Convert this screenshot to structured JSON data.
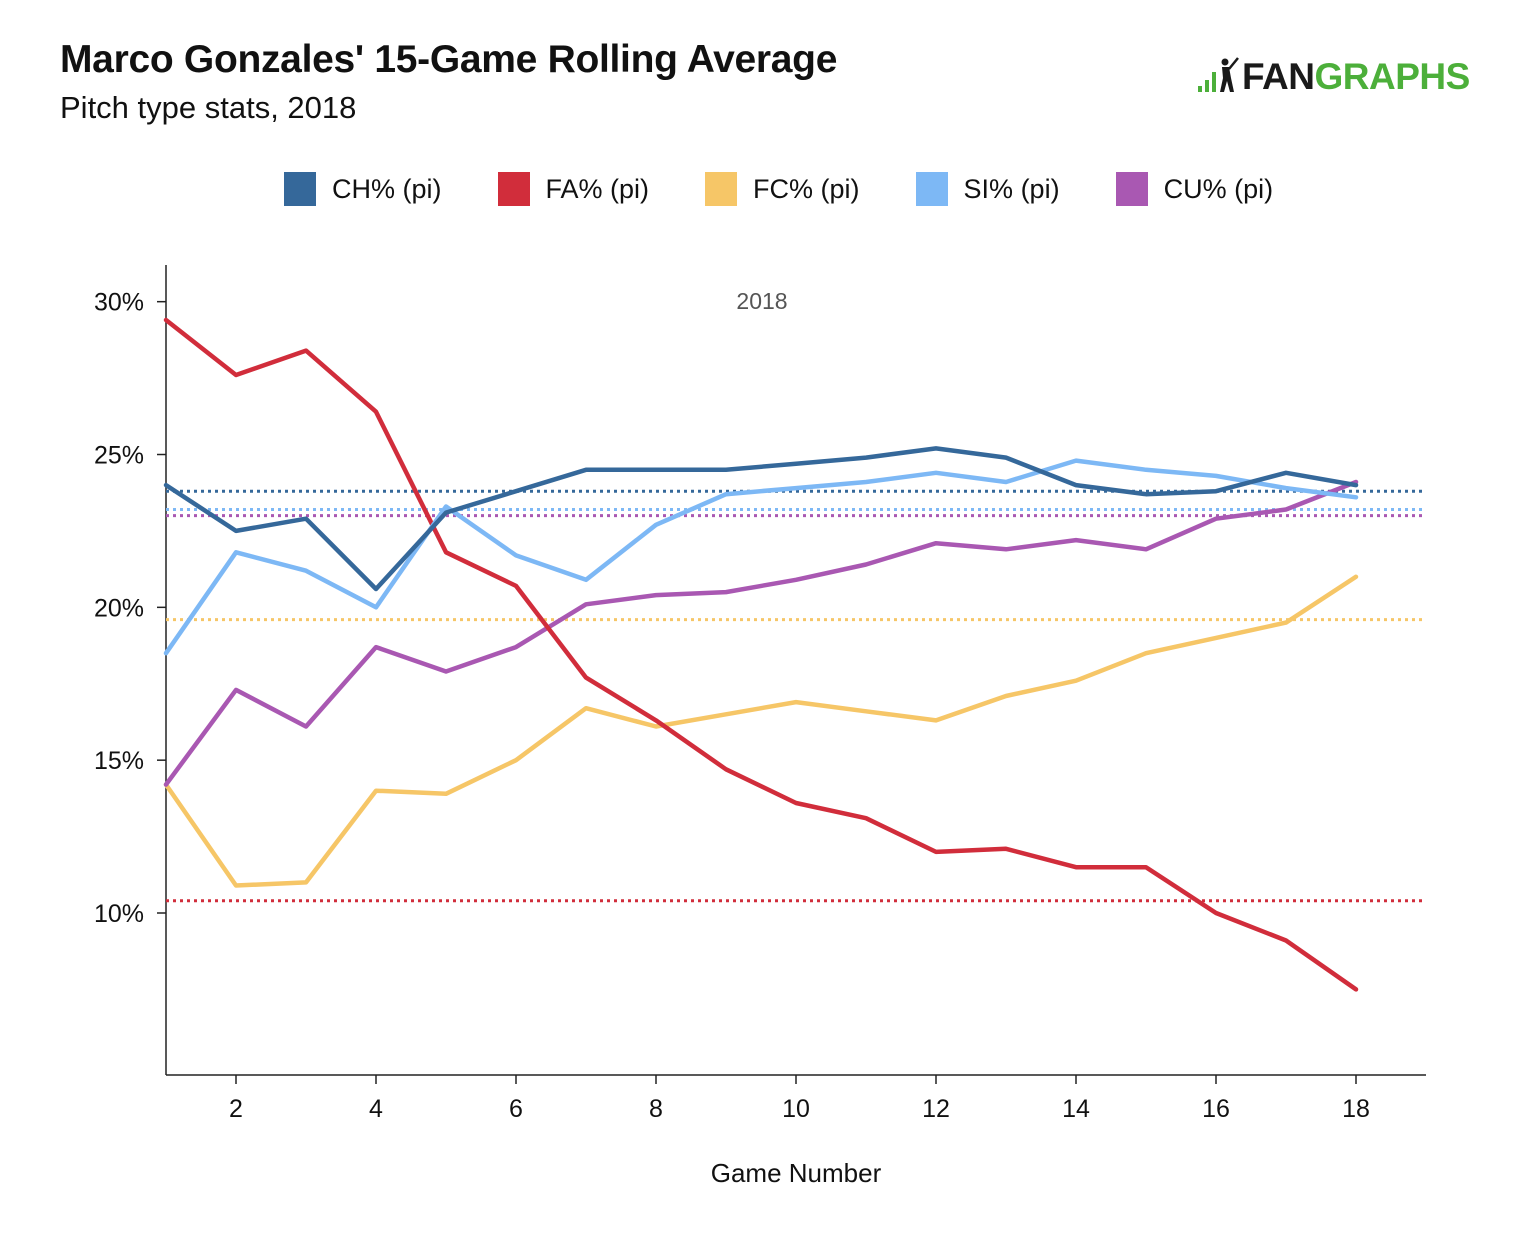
{
  "header": {
    "title": "Marco Gonzales' 15-Game Rolling Average",
    "subtitle": "Pitch type stats, 2018",
    "logo_left": "FAN",
    "logo_right": "GRAPHS"
  },
  "colors": {
    "CH": "#35689a",
    "FA": "#d12d3b",
    "FC": "#f6c667",
    "SI": "#7db8f5",
    "CU": "#a958b2",
    "logo_green": "#4caf3a"
  },
  "chart_data": {
    "type": "line",
    "title": "Marco Gonzales' 15-Game Rolling Average",
    "subtitle": "Pitch type stats, 2018",
    "xlabel": "Game Number",
    "ylabel": "",
    "annotation": "2018",
    "xlim": [
      1,
      19
    ],
    "ylim": [
      4.7,
      31.2
    ],
    "x_ticks": [
      2,
      4,
      6,
      8,
      10,
      12,
      14,
      16,
      18
    ],
    "x_tick_labels": [
      "2",
      "4",
      "6",
      "8",
      "10",
      "12",
      "14",
      "16",
      "18"
    ],
    "y_ticks": [
      10,
      15,
      20,
      25,
      30
    ],
    "y_tick_labels": [
      "10%",
      "15%",
      "20%",
      "25%",
      "30%"
    ],
    "legend_position": "top",
    "x": [
      1,
      2,
      3,
      4,
      5,
      6,
      7,
      8,
      9,
      10,
      11,
      12,
      13,
      14,
      15,
      16,
      17,
      18
    ],
    "series": [
      {
        "key": "CH",
        "name": "CH% (pi)",
        "values": [
          24.0,
          22.5,
          22.9,
          20.6,
          23.1,
          23.8,
          24.5,
          24.5,
          24.5,
          24.7,
          24.9,
          25.2,
          24.9,
          24.0,
          23.7,
          23.8,
          24.4,
          24.0
        ],
        "season_avg": 23.8
      },
      {
        "key": "FA",
        "name": "FA% (pi)",
        "values": [
          29.4,
          27.6,
          28.4,
          26.4,
          21.8,
          20.7,
          17.7,
          16.3,
          14.7,
          13.6,
          13.1,
          12.0,
          12.1,
          11.5,
          11.5,
          10.0,
          9.1,
          7.5
        ],
        "season_avg": 10.4
      },
      {
        "key": "FC",
        "name": "FC% (pi)",
        "values": [
          14.2,
          10.9,
          11.0,
          14.0,
          13.9,
          15.0,
          16.7,
          16.1,
          16.5,
          16.9,
          16.6,
          16.3,
          17.1,
          17.6,
          18.5,
          19.0,
          19.5,
          21.0
        ],
        "season_avg": 19.6
      },
      {
        "key": "SI",
        "name": "SI% (pi)",
        "values": [
          18.5,
          21.8,
          21.2,
          20.0,
          23.3,
          21.7,
          20.9,
          22.7,
          23.7,
          23.9,
          24.1,
          24.4,
          24.1,
          24.8,
          24.5,
          24.3,
          23.9,
          23.6
        ],
        "season_avg": 23.2
      },
      {
        "key": "CU",
        "name": "CU% (pi)",
        "values": [
          14.2,
          17.3,
          16.1,
          18.7,
          17.9,
          18.7,
          20.1,
          20.4,
          20.5,
          20.9,
          21.4,
          22.1,
          21.9,
          22.2,
          21.9,
          22.9,
          23.2,
          24.1
        ],
        "season_avg": 23.0
      }
    ]
  }
}
